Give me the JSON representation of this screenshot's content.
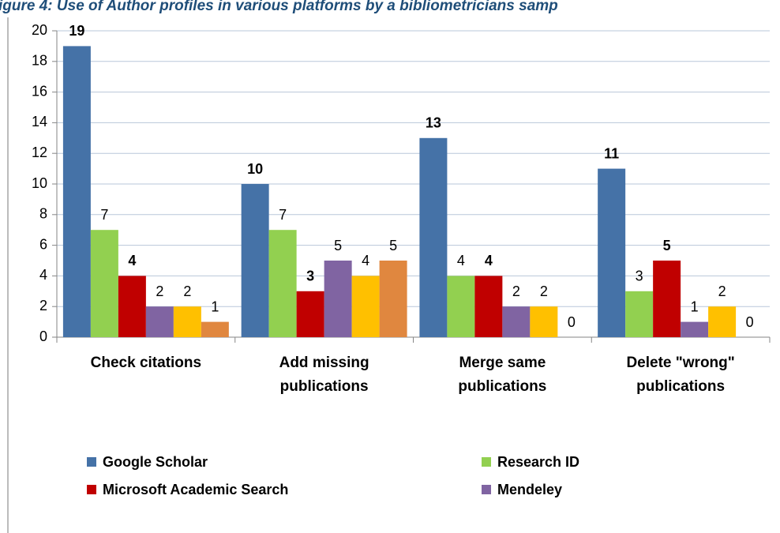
{
  "chart_data": {
    "type": "bar",
    "title": "igure 4: Use of Author profiles in various platforms by a bibliometricians samp",
    "categories": [
      "Check citations",
      "Add missing publications",
      "Merge same publications",
      "Delete \"wrong\" publications"
    ],
    "series": [
      {
        "name": "Google Scholar",
        "color": "#4572a7",
        "label_bold": true,
        "values": [
          19,
          10,
          13,
          11
        ]
      },
      {
        "name": "Research ID",
        "color": "#92d050",
        "label_bold": false,
        "values": [
          7,
          7,
          4,
          3
        ]
      },
      {
        "name": "Microsoft Academic Search",
        "color": "#c00000",
        "label_bold": true,
        "values": [
          4,
          3,
          4,
          5
        ]
      },
      {
        "name": "Mendeley",
        "color": "#8064a2",
        "label_bold": false,
        "values": [
          2,
          5,
          2,
          1
        ]
      },
      {
        "color": "#ffc000",
        "label_bold": false,
        "values": [
          2,
          4,
          2,
          2
        ]
      },
      {
        "color": "#e0873f",
        "label_bold": false,
        "values": [
          1,
          5,
          0,
          0
        ]
      }
    ],
    "ylim": [
      0,
      20
    ],
    "yticks": [
      0,
      2,
      4,
      6,
      8,
      10,
      12,
      14,
      16,
      18,
      20
    ],
    "grid": true,
    "legend": "bottom"
  }
}
